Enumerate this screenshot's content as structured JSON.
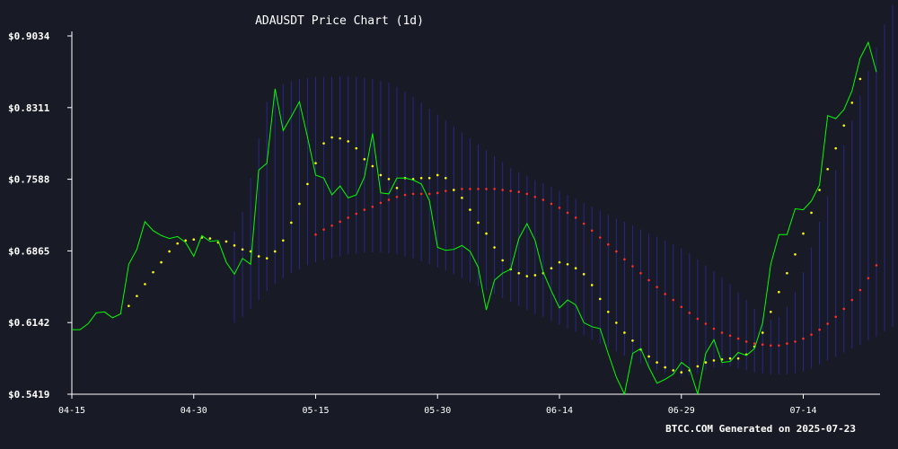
{
  "chart_data": {
    "type": "line",
    "title": "ADAUSDT Price Chart (1d)",
    "footer": "BTCC.COM Generated on 2025-07-23",
    "x_ticks": [
      "04-15",
      "04-30",
      "05-15",
      "05-30",
      "06-14",
      "06-29",
      "07-14"
    ],
    "y_ticks": [
      "$0.5419",
      "$0.6142",
      "$0.6865",
      "$0.7588",
      "$0.8311",
      "$0.9034"
    ],
    "ylim": [
      0.5419,
      0.9034
    ],
    "x_start": "2025-04-15",
    "grid": false,
    "colors": {
      "background": "#181a25",
      "price": "#00ff00",
      "ma_short": "#ffff00",
      "ma_long": "#ff2a2a",
      "band": "#2c2ca8",
      "text": "#ffffff"
    },
    "series": [
      {
        "key": "price",
        "style": "line",
        "start": "2025-04-15",
        "values": [
          0.607,
          0.607,
          0.613,
          0.624,
          0.625,
          0.619,
          0.623,
          0.673,
          0.688,
          0.716,
          0.707,
          0.702,
          0.699,
          0.701,
          0.695,
          0.681,
          0.702,
          0.696,
          0.697,
          0.675,
          0.663,
          0.679,
          0.673,
          0.768,
          0.775,
          0.85,
          0.808,
          0.822,
          0.837,
          0.801,
          0.763,
          0.76,
          0.743,
          0.752,
          0.74,
          0.743,
          0.761,
          0.805,
          0.745,
          0.744,
          0.76,
          0.76,
          0.758,
          0.754,
          0.737,
          0.69,
          0.687,
          0.688,
          0.692,
          0.686,
          0.67,
          0.627,
          0.657,
          0.664,
          0.668,
          0.699,
          0.714,
          0.697,
          0.665,
          0.646,
          0.629,
          0.637,
          0.632,
          0.614,
          0.61,
          0.608,
          0.583,
          0.559,
          0.542,
          0.583,
          0.588,
          0.569,
          0.553,
          0.557,
          0.562,
          0.574,
          0.568,
          0.542,
          0.583,
          0.597,
          0.574,
          0.575,
          0.584,
          0.581,
          0.588,
          0.614,
          0.673,
          0.703,
          0.703,
          0.729,
          0.728,
          0.737,
          0.753,
          0.823,
          0.82,
          0.829,
          0.848,
          0.881,
          0.897,
          0.867
        ]
      },
      {
        "key": "ma_short",
        "style": "dots",
        "start": "2025-04-22",
        "values": [
          0.631,
          0.641,
          0.653,
          0.665,
          0.675,
          0.686,
          0.694,
          0.697,
          0.698,
          0.7,
          0.699,
          0.695,
          0.696,
          0.692,
          0.688,
          0.686,
          0.681,
          0.679,
          0.686,
          0.697,
          0.715,
          0.734,
          0.754,
          0.775,
          0.795,
          0.801,
          0.8,
          0.797,
          0.79,
          0.779,
          0.772,
          0.763,
          0.759,
          0.75,
          0.76,
          0.759,
          0.76,
          0.76,
          0.763,
          0.76,
          0.748,
          0.74,
          0.728,
          0.715,
          0.704,
          0.69,
          0.677,
          0.668,
          0.664,
          0.661,
          0.662,
          0.664,
          0.669,
          0.675,
          0.673,
          0.669,
          0.663,
          0.652,
          0.638,
          0.625,
          0.614,
          0.604,
          0.596,
          0.587,
          0.58,
          0.574,
          0.569,
          0.566,
          0.564,
          0.566,
          0.57,
          0.574,
          0.576,
          0.577,
          0.578,
          0.578,
          0.582,
          0.59,
          0.604,
          0.625,
          0.645,
          0.664,
          0.683,
          0.704,
          0.725,
          0.748,
          0.769,
          0.79,
          0.813,
          0.836,
          0.86
        ]
      },
      {
        "key": "ma_long",
        "style": "dots",
        "start": "2025-05-15",
        "values": [
          0.703,
          0.708,
          0.712,
          0.716,
          0.72,
          0.724,
          0.728,
          0.731,
          0.735,
          0.738,
          0.741,
          0.743,
          0.744,
          0.744,
          0.744,
          0.745,
          0.747,
          0.748,
          0.749,
          0.749,
          0.749,
          0.749,
          0.749,
          0.748,
          0.747,
          0.746,
          0.744,
          0.741,
          0.738,
          0.734,
          0.73,
          0.725,
          0.72,
          0.714,
          0.707,
          0.7,
          0.693,
          0.686,
          0.678,
          0.671,
          0.664,
          0.657,
          0.65,
          0.643,
          0.637,
          0.63,
          0.624,
          0.618,
          0.613,
          0.608,
          0.604,
          0.601,
          0.598,
          0.595,
          0.593,
          0.592,
          0.591,
          0.591,
          0.593,
          0.595,
          0.598,
          0.602,
          0.607,
          0.613,
          0.62,
          0.628,
          0.637,
          0.647,
          0.659,
          0.672
        ]
      },
      {
        "key": "band",
        "style": "band",
        "start": "2025-05-05",
        "upper": [
          0.706,
          0.726,
          0.76,
          0.8,
          0.837,
          0.85,
          0.855,
          0.858,
          0.86,
          0.861,
          0.862,
          0.862,
          0.862,
          0.863,
          0.863,
          0.862,
          0.861,
          0.86,
          0.858,
          0.856,
          0.852,
          0.847,
          0.842,
          0.836,
          0.83,
          0.824,
          0.818,
          0.812,
          0.806,
          0.8,
          0.794,
          0.788,
          0.782,
          0.776,
          0.77,
          0.766,
          0.762,
          0.758,
          0.755,
          0.751,
          0.747,
          0.743,
          0.739,
          0.735,
          0.731,
          0.727,
          0.723,
          0.719,
          0.716,
          0.712,
          0.708,
          0.704,
          0.701,
          0.697,
          0.693,
          0.689,
          0.684,
          0.678,
          0.672,
          0.666,
          0.66,
          0.653,
          0.645,
          0.637,
          0.628,
          0.62,
          0.617,
          0.62,
          0.63,
          0.645,
          0.665,
          0.69,
          0.716,
          0.742,
          0.768,
          0.793,
          0.818,
          0.843,
          0.868,
          0.892,
          0.915,
          0.935,
          0.955,
          0.975,
          0.995
        ],
        "lower": [
          0.614,
          0.62,
          0.628,
          0.637,
          0.646,
          0.653,
          0.659,
          0.664,
          0.668,
          0.672,
          0.675,
          0.677,
          0.679,
          0.681,
          0.683,
          0.684,
          0.685,
          0.685,
          0.685,
          0.684,
          0.683,
          0.681,
          0.679,
          0.676,
          0.673,
          0.67,
          0.667,
          0.663,
          0.659,
          0.655,
          0.651,
          0.647,
          0.643,
          0.639,
          0.635,
          0.631,
          0.627,
          0.623,
          0.62,
          0.616,
          0.612,
          0.608,
          0.605,
          0.601,
          0.597,
          0.593,
          0.589,
          0.585,
          0.581,
          0.577,
          0.573,
          0.569,
          0.566,
          0.563,
          0.561,
          0.56,
          0.561,
          0.563,
          0.566,
          0.569,
          0.57,
          0.57,
          0.568,
          0.566,
          0.564,
          0.563,
          0.562,
          0.562,
          0.562,
          0.563,
          0.565,
          0.568,
          0.572,
          0.576,
          0.58,
          0.584,
          0.588,
          0.592,
          0.596,
          0.6,
          0.605,
          0.61,
          0.615,
          0.622,
          0.63
        ]
      }
    ]
  }
}
